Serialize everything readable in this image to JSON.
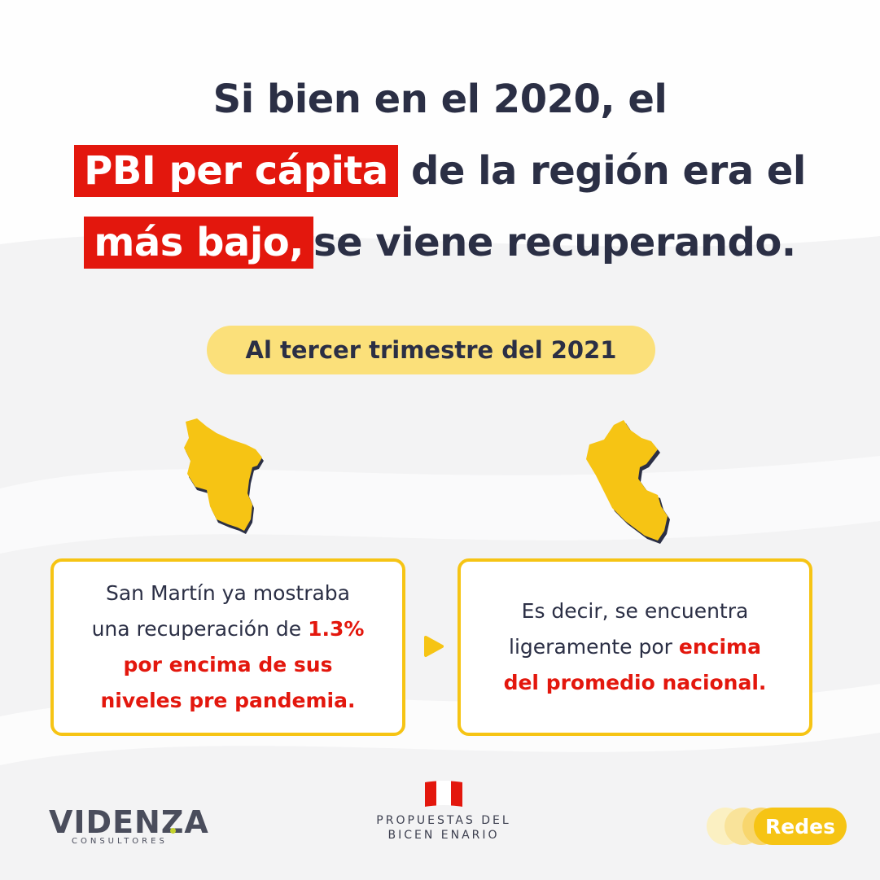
{
  "headline": {
    "line1": "Si bien en el 2020, el",
    "highlight1": "PBI per cápita",
    "line2_rest": "de la región era el",
    "highlight2": "más bajo,",
    "line3_rest": "se viene recuperando."
  },
  "pill": {
    "label": "Al tercer trimestre del 2021"
  },
  "card_left": {
    "line1": "San Martín ya mostraba",
    "line2": "una recuperación de",
    "value": "1.3%",
    "line3": "por encima de sus",
    "line4": "niveles pre pandemia."
  },
  "card_right": {
    "line1": "Es decir, se encuentra",
    "line2": "ligeramente por",
    "highlight_a": "encima",
    "highlight_b": "del promedio nacional."
  },
  "footer": {
    "videnza_name": "VIDENZA",
    "videnza_sub": "CONSULTORES",
    "bicentenario_line1": "PROPUESTAS DEL",
    "bicentenario_line2": "BICEN ENARIO",
    "redes_label": "Redes"
  },
  "colors": {
    "accent_red": "#e3170d",
    "accent_yellow": "#f6c414",
    "pill_yellow": "#fbe07a",
    "text_dark": "#2b2f45"
  },
  "icons": [
    "san-martin-map-icon",
    "peru-map-icon",
    "play-arrow-icon",
    "peru-flag-icon"
  ]
}
